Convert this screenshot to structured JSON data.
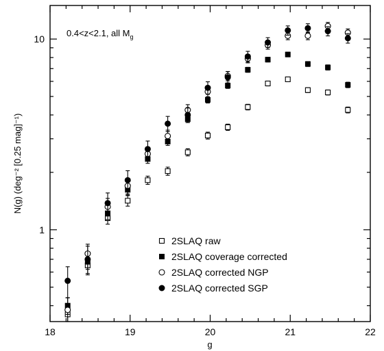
{
  "chart_data": {
    "type": "scatter",
    "annotation": {
      "prefix": "0.4<z<2.1, all M",
      "subscript": "g"
    },
    "xlabel": "g",
    "ylabel": "N(g) (deg⁻² [0.25 mag]⁻¹)",
    "xlim": [
      18,
      22
    ],
    "ylim": [
      0.33,
      15
    ],
    "yscale": "log",
    "x_ticks": [
      "18",
      "19",
      "20",
      "21",
      "22"
    ],
    "y_ticks": [
      "1",
      "10"
    ],
    "grid": false,
    "legend_position": "bottom-right",
    "series": [
      {
        "name": "2SLAQ raw",
        "marker": "open-square",
        "x": [
          18.22,
          18.47,
          18.72,
          18.97,
          19.22,
          19.47,
          19.72,
          19.97,
          20.22,
          20.47,
          20.72,
          20.97,
          21.22,
          21.47,
          21.72
        ],
        "y": [
          0.36,
          0.65,
          1.15,
          1.42,
          1.82,
          2.03,
          2.55,
          3.12,
          3.45,
          4.4,
          5.85,
          6.15,
          5.4,
          5.25,
          4.25
        ],
        "err": [
          0.04,
          0.06,
          0.08,
          0.09,
          0.09,
          0.1,
          0.11,
          0.13,
          0.13,
          0.15,
          0.17,
          0.17,
          0.16,
          0.16,
          0.15
        ]
      },
      {
        "name": "2SLAQ coverage corrected",
        "marker": "filled-square",
        "x": [
          18.22,
          18.47,
          18.72,
          18.97,
          19.22,
          19.47,
          19.72,
          19.97,
          20.22,
          20.47,
          20.72,
          20.97,
          21.22,
          21.47,
          21.72
        ],
        "y": [
          0.4,
          0.68,
          1.22,
          1.62,
          2.35,
          2.9,
          3.8,
          4.8,
          5.7,
          6.9,
          7.8,
          8.3,
          7.4,
          7.1,
          5.75
        ],
        "err": [
          0.04,
          0.06,
          0.09,
          0.1,
          0.12,
          0.13,
          0.15,
          0.18,
          0.19,
          0.21,
          0.22,
          0.23,
          0.22,
          0.22,
          0.19
        ]
      },
      {
        "name": "2SLAQ corrected NGP",
        "marker": "open-circle",
        "x": [
          18.22,
          18.47,
          18.72,
          18.97,
          19.22,
          19.47,
          19.72,
          19.97,
          20.22,
          20.47,
          20.72,
          20.97,
          21.22,
          21.47,
          21.72
        ],
        "y": [
          0.38,
          0.75,
          1.32,
          1.7,
          2.5,
          3.1,
          4.25,
          5.3,
          6.4,
          7.9,
          9.3,
          10.4,
          10.4,
          11.7,
          10.8
        ],
        "err": [
          0.06,
          0.09,
          0.14,
          0.16,
          0.2,
          0.23,
          0.28,
          0.32,
          0.36,
          0.4,
          0.45,
          0.48,
          0.48,
          0.52,
          0.5
        ]
      },
      {
        "name": "2SLAQ corrected SGP",
        "marker": "filled-circle",
        "x": [
          18.22,
          18.47,
          18.72,
          18.97,
          19.22,
          19.47,
          19.72,
          19.97,
          20.22,
          20.47,
          20.72,
          20.97,
          21.22,
          21.47,
          21.72
        ],
        "y": [
          0.54,
          0.7,
          1.38,
          1.82,
          2.65,
          3.6,
          4.0,
          5.55,
          6.3,
          8.1,
          9.6,
          11.1,
          11.4,
          11.0,
          10.1
        ],
        "err": [
          0.1,
          0.12,
          0.18,
          0.22,
          0.27,
          0.33,
          0.35,
          0.42,
          0.45,
          0.52,
          0.57,
          0.62,
          0.63,
          0.61,
          0.58
        ]
      }
    ]
  }
}
